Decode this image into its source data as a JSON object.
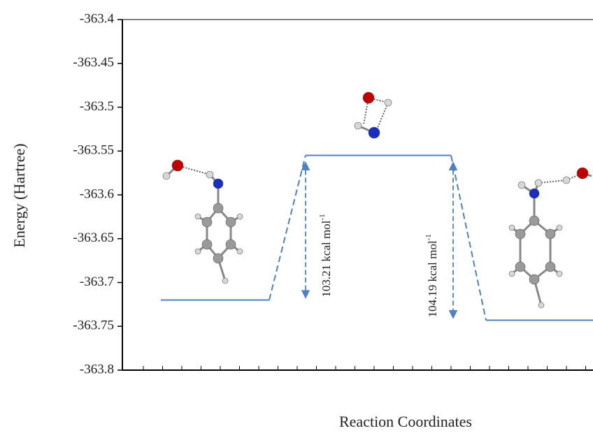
{
  "chart_data": {
    "type": "level",
    "ylabel": "Energy (Hartree)",
    "xlabel": "Reaction Coordinates",
    "categories": [
      null,
      null,
      null
    ],
    "values": [
      -363.72,
      -363.555,
      -363.743
    ],
    "color": "#4f81bd",
    "ylim": [
      -363.8,
      -363.4
    ],
    "yticks": [
      -363.4,
      -363.45,
      -363.5,
      -363.55,
      -363.6,
      -363.65,
      -363.7,
      -363.75,
      -363.8
    ],
    "annotations": [
      {
        "text": "103.21 kcal mol",
        "sup": "-1"
      },
      {
        "text": "104.19 kcal mol",
        "sup": "-1"
      }
    ]
  }
}
